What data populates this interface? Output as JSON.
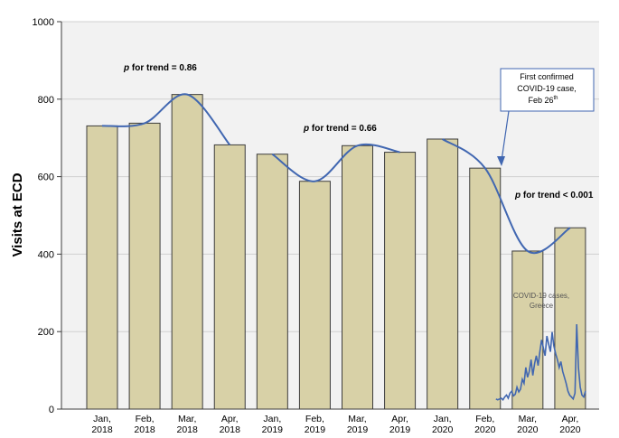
{
  "chart_data": {
    "type": "bar",
    "ylabel": "Visits at ECD",
    "ylim": [
      0,
      1000
    ],
    "yticks": [
      0,
      200,
      400,
      600,
      800,
      1000
    ],
    "categories": [
      [
        "Jan,",
        "2018"
      ],
      [
        "Feb,",
        "2018"
      ],
      [
        "Mar,",
        "2018"
      ],
      [
        "Apr,",
        "2018"
      ],
      [
        "Jan,",
        "2019"
      ],
      [
        "Feb,",
        "2019"
      ],
      [
        "Mar,",
        "2019"
      ],
      [
        "Apr,",
        "2019"
      ],
      [
        "Jan,",
        "2020"
      ],
      [
        "Feb,",
        "2020"
      ],
      [
        "Mar,",
        "2020"
      ],
      [
        "Apr,",
        "2020"
      ]
    ],
    "values": [
      731,
      738,
      812,
      682,
      658,
      588,
      680,
      663,
      697,
      622,
      408,
      468
    ],
    "trend_groups": [
      [
        0,
        3
      ],
      [
        4,
        7
      ],
      [
        8,
        11
      ]
    ],
    "annotations": {
      "trend_2018": {
        "p": "p",
        "rest": " for trend = 0.86"
      },
      "trend_2019": {
        "p": "p",
        "rest": " for trend = 0.66"
      },
      "trend_2020": {
        "p": "p",
        "rest": " for trend < 0.001"
      },
      "first_case": {
        "line1": "First confirmed",
        "line2": "COVID-19 case,",
        "line3": "Feb 26",
        "sup": "th"
      },
      "covid_cases": {
        "line1": "COVID-19 cases,",
        "line2": "Greece"
      }
    },
    "covid_cases_series": [
      40,
      38,
      40,
      42,
      38,
      45,
      50,
      42,
      55,
      60,
      48,
      52,
      70,
      58,
      65,
      90,
      80,
      120,
      95,
      110,
      140,
      100,
      130,
      150,
      125,
      160,
      190,
      170,
      150,
      200,
      180,
      160,
      210,
      175,
      155,
      140,
      120,
      135,
      110,
      95,
      80,
      60,
      50,
      45,
      40,
      55,
      230,
      120,
      70,
      50,
      45,
      60
    ]
  },
  "colors": {
    "bar_fill": "#d8d1a7",
    "bar_stroke": "#3c3c3c",
    "plot_bg": "#f2f2f2",
    "grid": "#d0d0d0",
    "line": "#4167b1",
    "annotation_text": "#000000"
  }
}
